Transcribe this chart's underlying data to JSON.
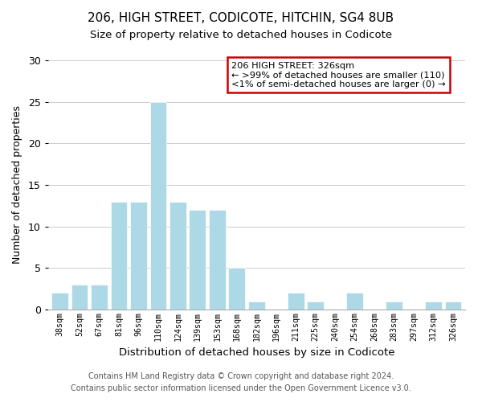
{
  "title": "206, HIGH STREET, CODICOTE, HITCHIN, SG4 8UB",
  "subtitle": "Size of property relative to detached houses in Codicote",
  "xlabel": "Distribution of detached houses by size in Codicote",
  "ylabel": "Number of detached properties",
  "bar_labels": [
    "38sqm",
    "52sqm",
    "67sqm",
    "81sqm",
    "96sqm",
    "110sqm",
    "124sqm",
    "139sqm",
    "153sqm",
    "168sqm",
    "182sqm",
    "196sqm",
    "211sqm",
    "225sqm",
    "240sqm",
    "254sqm",
    "268sqm",
    "283sqm",
    "297sqm",
    "312sqm",
    "326sqm"
  ],
  "bar_values": [
    2,
    3,
    3,
    13,
    13,
    25,
    13,
    12,
    12,
    5,
    1,
    0,
    2,
    1,
    0,
    2,
    0,
    1,
    0,
    1,
    1
  ],
  "bar_color": "#add8e6",
  "ylim": [
    0,
    30
  ],
  "yticks": [
    0,
    5,
    10,
    15,
    20,
    25,
    30
  ],
  "annotation_title": "206 HIGH STREET: 326sqm",
  "annotation_line1": "← >99% of detached houses are smaller (110)",
  "annotation_line2": "<1% of semi-detached houses are larger (0) →",
  "annotation_box_color": "#ffffff",
  "annotation_border_color": "#cc0000",
  "footer_line1": "Contains HM Land Registry data © Crown copyright and database right 2024.",
  "footer_line2": "Contains public sector information licensed under the Open Government Licence v3.0."
}
